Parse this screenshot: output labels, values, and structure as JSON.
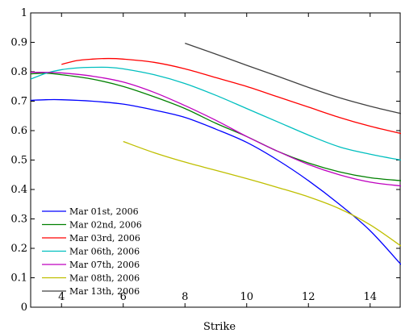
{
  "chart_data": {
    "type": "line",
    "title": "",
    "xlabel": "Strike",
    "ylabel": "",
    "xlim": [
      3,
      15
    ],
    "ylim": [
      0,
      1
    ],
    "xticks": [
      4,
      6,
      8,
      10,
      12,
      14
    ],
    "xtick_labels": [
      "4",
      "6",
      "8",
      "10",
      "12",
      "14"
    ],
    "yticks": [
      0,
      0.1,
      0.2,
      0.3,
      0.4,
      0.5,
      0.6,
      0.7,
      0.8,
      0.9,
      1
    ],
    "ytick_labels": [
      "0",
      "0.1",
      "0.2",
      "0.3",
      "0.4",
      "0.5",
      "0.6",
      "0.7",
      "0.8",
      "0.9",
      "1"
    ],
    "grid": false,
    "legend_position": "bottom-left",
    "series": [
      {
        "name": "Mar 01st, 2006",
        "color": "#0000ff",
        "x": [
          3,
          3.5,
          4,
          5,
          6,
          7,
          8,
          9,
          10,
          11,
          12,
          13,
          14,
          15
        ],
        "y": [
          0.703,
          0.705,
          0.705,
          0.7,
          0.69,
          0.67,
          0.645,
          0.605,
          0.56,
          0.5,
          0.43,
          0.35,
          0.26,
          0.145
        ]
      },
      {
        "name": "Mar 02nd, 2006",
        "color": "#008000",
        "x": [
          3,
          3.5,
          4,
          5,
          6,
          7,
          8,
          9,
          10,
          11,
          12,
          13,
          14,
          15
        ],
        "y": [
          0.793,
          0.795,
          0.79,
          0.775,
          0.75,
          0.715,
          0.675,
          0.625,
          0.58,
          0.53,
          0.49,
          0.46,
          0.44,
          0.43
        ]
      },
      {
        "name": "Mar 03rd, 2006",
        "color": "#ff0000",
        "x": [
          4,
          4.5,
          5,
          5.5,
          6,
          7,
          8,
          9,
          10,
          11,
          12,
          13,
          14,
          15
        ],
        "y": [
          0.825,
          0.838,
          0.843,
          0.845,
          0.843,
          0.832,
          0.81,
          0.78,
          0.75,
          0.715,
          0.68,
          0.645,
          0.615,
          0.59
        ]
      },
      {
        "name": "Mar 06th, 2006",
        "color": "#00bfbf",
        "x": [
          3,
          3.5,
          4,
          4.5,
          5,
          5.5,
          6,
          7,
          8,
          9,
          10,
          11,
          12,
          13,
          14,
          15
        ],
        "y": [
          0.775,
          0.795,
          0.807,
          0.813,
          0.815,
          0.815,
          0.81,
          0.79,
          0.76,
          0.72,
          0.675,
          0.63,
          0.585,
          0.545,
          0.52,
          0.5
        ]
      },
      {
        "name": "Mar 07th, 2006",
        "color": "#bf00bf",
        "x": [
          3,
          3.5,
          4,
          5,
          6,
          7,
          8,
          9,
          10,
          11,
          12,
          13,
          14,
          15
        ],
        "y": [
          0.798,
          0.798,
          0.796,
          0.785,
          0.765,
          0.73,
          0.685,
          0.635,
          0.58,
          0.53,
          0.485,
          0.45,
          0.425,
          0.412
        ]
      },
      {
        "name": "Mar 08th, 2006",
        "color": "#bfbf00",
        "x": [
          6,
          7,
          8,
          9,
          10,
          11,
          12,
          13,
          14,
          15
        ],
        "y": [
          0.563,
          0.525,
          0.493,
          0.465,
          0.437,
          0.407,
          0.375,
          0.335,
          0.28,
          0.208
        ]
      },
      {
        "name": "Mar 13th, 2006",
        "color": "#404040",
        "x": [
          8,
          9,
          10,
          11,
          12,
          13,
          14,
          15
        ],
        "y": [
          0.897,
          0.86,
          0.822,
          0.785,
          0.747,
          0.712,
          0.683,
          0.658
        ]
      }
    ]
  }
}
